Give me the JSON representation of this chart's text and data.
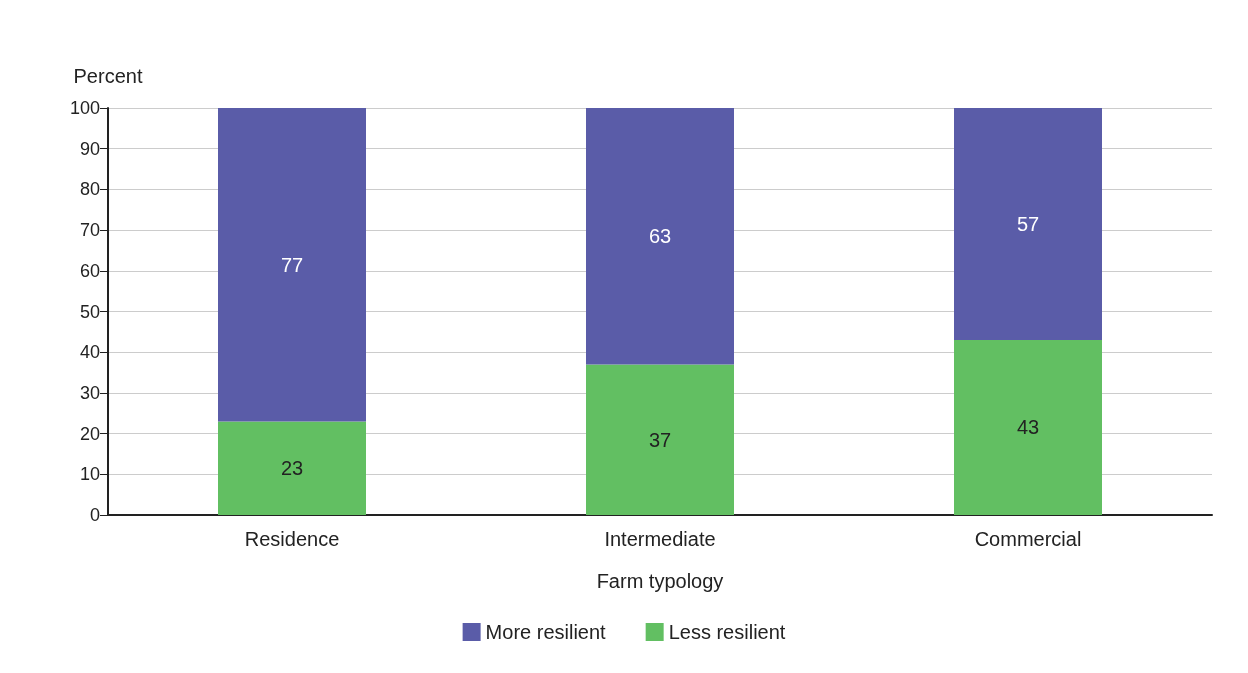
{
  "chart_data": {
    "type": "bar",
    "stacked": true,
    "xlabel": "Farm typology",
    "ylabel": "Percent",
    "categories": [
      "Residence",
      "Intermediate",
      "Commercial"
    ],
    "series": [
      {
        "name": "Less resilient",
        "color": "#62bf62",
        "values": [
          23,
          37,
          43
        ]
      },
      {
        "name": "More resilient",
        "color": "#5a5ca8",
        "values": [
          77,
          63,
          57
        ]
      }
    ],
    "ylim": [
      0,
      100
    ],
    "yticks": [
      0,
      10,
      20,
      30,
      40,
      50,
      60,
      70,
      80,
      90,
      100
    ],
    "grid": "y",
    "legend": "bottom",
    "data_labels": true
  }
}
